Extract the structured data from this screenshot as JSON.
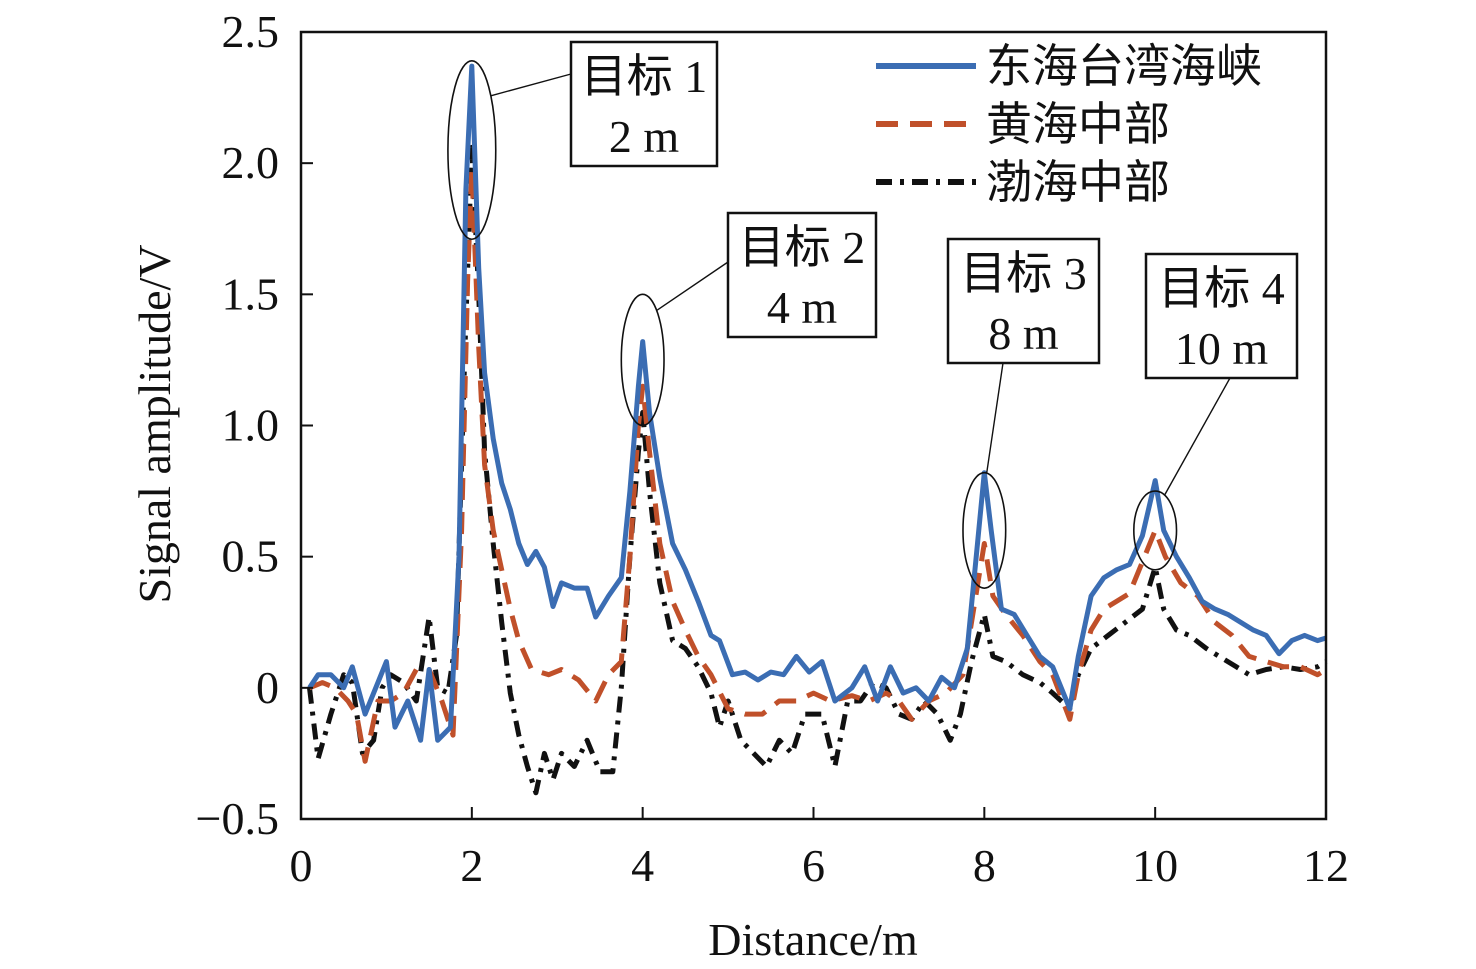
{
  "chart_data": {
    "type": "line",
    "xlabel": "Distance/m",
    "ylabel": "Signal amplitude/V",
    "xlim": [
      0,
      12
    ],
    "ylim": [
      -0.5,
      2.5
    ],
    "x_tick_labels": [
      "0",
      "2",
      "4",
      "6",
      "8",
      "10",
      "12"
    ],
    "y_tick_labels": [
      "−0.5",
      "0",
      "0.5",
      "1.0",
      "1.5",
      "2.0",
      "2.5"
    ],
    "y_tick_values": [
      -0.5,
      0,
      0.5,
      1.0,
      1.5,
      2.0,
      2.5
    ],
    "legend_position": "top-right",
    "grid": false,
    "series": [
      {
        "name": "东海台湾海峡",
        "color": "#3b6db3",
        "dash": "solid",
        "points": [
          [
            0.1,
            0.0
          ],
          [
            0.2,
            0.05
          ],
          [
            0.35,
            0.05
          ],
          [
            0.5,
            0.0
          ],
          [
            0.6,
            0.08
          ],
          [
            0.75,
            -0.1
          ],
          [
            0.9,
            0.02
          ],
          [
            1.0,
            0.1
          ],
          [
            1.1,
            -0.15
          ],
          [
            1.25,
            -0.05
          ],
          [
            1.4,
            -0.2
          ],
          [
            1.5,
            0.07
          ],
          [
            1.6,
            -0.2
          ],
          [
            1.75,
            -0.15
          ],
          [
            1.85,
            0.5
          ],
          [
            1.93,
            1.9
          ],
          [
            2.0,
            2.37
          ],
          [
            2.08,
            1.6
          ],
          [
            2.15,
            1.2
          ],
          [
            2.25,
            0.95
          ],
          [
            2.35,
            0.78
          ],
          [
            2.45,
            0.68
          ],
          [
            2.55,
            0.55
          ],
          [
            2.65,
            0.47
          ],
          [
            2.75,
            0.52
          ],
          [
            2.85,
            0.46
          ],
          [
            2.95,
            0.31
          ],
          [
            3.05,
            0.4
          ],
          [
            3.2,
            0.38
          ],
          [
            3.35,
            0.38
          ],
          [
            3.45,
            0.27
          ],
          [
            3.6,
            0.35
          ],
          [
            3.75,
            0.42
          ],
          [
            3.85,
            0.75
          ],
          [
            3.95,
            1.15
          ],
          [
            4.0,
            1.32
          ],
          [
            4.08,
            1.05
          ],
          [
            4.2,
            0.8
          ],
          [
            4.35,
            0.55
          ],
          [
            4.5,
            0.45
          ],
          [
            4.65,
            0.33
          ],
          [
            4.8,
            0.2
          ],
          [
            4.9,
            0.18
          ],
          [
            5.05,
            0.05
          ],
          [
            5.2,
            0.06
          ],
          [
            5.35,
            0.03
          ],
          [
            5.5,
            0.06
          ],
          [
            5.65,
            0.05
          ],
          [
            5.8,
            0.12
          ],
          [
            5.95,
            0.06
          ],
          [
            6.1,
            0.1
          ],
          [
            6.25,
            -0.05
          ],
          [
            6.45,
            0.0
          ],
          [
            6.6,
            0.08
          ],
          [
            6.75,
            -0.05
          ],
          [
            6.9,
            0.08
          ],
          [
            7.05,
            -0.02
          ],
          [
            7.2,
            0.0
          ],
          [
            7.35,
            -0.05
          ],
          [
            7.5,
            0.04
          ],
          [
            7.65,
            0.0
          ],
          [
            7.8,
            0.15
          ],
          [
            7.92,
            0.55
          ],
          [
            8.0,
            0.82
          ],
          [
            8.08,
            0.6
          ],
          [
            8.2,
            0.3
          ],
          [
            8.35,
            0.28
          ],
          [
            8.5,
            0.2
          ],
          [
            8.65,
            0.12
          ],
          [
            8.8,
            0.08
          ],
          [
            9.0,
            -0.08
          ],
          [
            9.1,
            0.12
          ],
          [
            9.25,
            0.35
          ],
          [
            9.4,
            0.42
          ],
          [
            9.55,
            0.45
          ],
          [
            9.7,
            0.47
          ],
          [
            9.85,
            0.58
          ],
          [
            10.0,
            0.79
          ],
          [
            10.1,
            0.6
          ],
          [
            10.25,
            0.5
          ],
          [
            10.4,
            0.42
          ],
          [
            10.55,
            0.33
          ],
          [
            10.7,
            0.3
          ],
          [
            10.85,
            0.28
          ],
          [
            11.0,
            0.25
          ],
          [
            11.15,
            0.22
          ],
          [
            11.3,
            0.2
          ],
          [
            11.45,
            0.13
          ],
          [
            11.6,
            0.18
          ],
          [
            11.75,
            0.2
          ],
          [
            11.9,
            0.18
          ],
          [
            12.0,
            0.19
          ]
        ]
      },
      {
        "name": "黄海中部",
        "color": "#c0502a",
        "dash": "dashed",
        "points": [
          [
            0.1,
            0.0
          ],
          [
            0.25,
            0.02
          ],
          [
            0.4,
            0.0
          ],
          [
            0.55,
            -0.05
          ],
          [
            0.65,
            -0.1
          ],
          [
            0.75,
            -0.28
          ],
          [
            0.9,
            -0.05
          ],
          [
            1.05,
            -0.05
          ],
          [
            1.2,
            -0.02
          ],
          [
            1.35,
            0.07
          ],
          [
            1.5,
            0.07
          ],
          [
            1.65,
            -0.05
          ],
          [
            1.78,
            -0.18
          ],
          [
            1.88,
            0.6
          ],
          [
            1.95,
            1.55
          ],
          [
            2.0,
            1.98
          ],
          [
            2.08,
            1.3
          ],
          [
            2.15,
            0.85
          ],
          [
            2.25,
            0.6
          ],
          [
            2.35,
            0.45
          ],
          [
            2.45,
            0.3
          ],
          [
            2.55,
            0.18
          ],
          [
            2.7,
            0.07
          ],
          [
            2.9,
            0.05
          ],
          [
            3.05,
            0.07
          ],
          [
            3.25,
            0.03
          ],
          [
            3.45,
            -0.05
          ],
          [
            3.6,
            0.05
          ],
          [
            3.75,
            0.1
          ],
          [
            3.85,
            0.5
          ],
          [
            3.95,
            1.0
          ],
          [
            4.0,
            1.15
          ],
          [
            4.08,
            0.9
          ],
          [
            4.2,
            0.55
          ],
          [
            4.35,
            0.33
          ],
          [
            4.5,
            0.22
          ],
          [
            4.65,
            0.12
          ],
          [
            4.8,
            0.05
          ],
          [
            5.0,
            -0.08
          ],
          [
            5.2,
            -0.1
          ],
          [
            5.4,
            -0.1
          ],
          [
            5.6,
            -0.05
          ],
          [
            5.8,
            -0.05
          ],
          [
            6.0,
            -0.02
          ],
          [
            6.2,
            -0.05
          ],
          [
            6.45,
            -0.03
          ],
          [
            6.65,
            -0.05
          ],
          [
            6.85,
            -0.02
          ],
          [
            7.0,
            -0.05
          ],
          [
            7.15,
            -0.12
          ],
          [
            7.35,
            -0.05
          ],
          [
            7.55,
            -0.02
          ],
          [
            7.75,
            0.05
          ],
          [
            7.9,
            0.35
          ],
          [
            8.0,
            0.55
          ],
          [
            8.1,
            0.35
          ],
          [
            8.25,
            0.28
          ],
          [
            8.45,
            0.2
          ],
          [
            8.65,
            0.1
          ],
          [
            8.8,
            0.05
          ],
          [
            9.0,
            -0.12
          ],
          [
            9.1,
            0.05
          ],
          [
            9.25,
            0.22
          ],
          [
            9.4,
            0.3
          ],
          [
            9.55,
            0.33
          ],
          [
            9.7,
            0.36
          ],
          [
            9.85,
            0.48
          ],
          [
            10.0,
            0.6
          ],
          [
            10.12,
            0.5
          ],
          [
            10.3,
            0.4
          ],
          [
            10.5,
            0.35
          ],
          [
            10.7,
            0.25
          ],
          [
            10.9,
            0.2
          ],
          [
            11.1,
            0.12
          ],
          [
            11.3,
            0.1
          ],
          [
            11.5,
            0.08
          ],
          [
            11.7,
            0.08
          ],
          [
            11.9,
            0.05
          ],
          [
            12.0,
            0.07
          ]
        ]
      },
      {
        "name": "渤海中部",
        "color": "#111111",
        "dash": "dashdot",
        "points": [
          [
            0.1,
            0.0
          ],
          [
            0.2,
            -0.27
          ],
          [
            0.35,
            -0.1
          ],
          [
            0.5,
            0.05
          ],
          [
            0.6,
            0.02
          ],
          [
            0.72,
            -0.25
          ],
          [
            0.85,
            -0.2
          ],
          [
            0.95,
            0.0
          ],
          [
            1.05,
            0.05
          ],
          [
            1.2,
            0.02
          ],
          [
            1.35,
            -0.05
          ],
          [
            1.5,
            0.27
          ],
          [
            1.6,
            0.0
          ],
          [
            1.72,
            -0.02
          ],
          [
            1.82,
            0.2
          ],
          [
            1.92,
            1.3
          ],
          [
            2.0,
            2.06
          ],
          [
            2.08,
            1.5
          ],
          [
            2.15,
            0.9
          ],
          [
            2.25,
            0.55
          ],
          [
            2.35,
            0.25
          ],
          [
            2.45,
            -0.02
          ],
          [
            2.55,
            -0.18
          ],
          [
            2.65,
            -0.3
          ],
          [
            2.75,
            -0.4
          ],
          [
            2.85,
            -0.25
          ],
          [
            2.95,
            -0.35
          ],
          [
            3.05,
            -0.25
          ],
          [
            3.2,
            -0.3
          ],
          [
            3.35,
            -0.2
          ],
          [
            3.5,
            -0.32
          ],
          [
            3.65,
            -0.32
          ],
          [
            3.75,
            0.0
          ],
          [
            3.85,
            0.5
          ],
          [
            3.95,
            0.9
          ],
          [
            4.0,
            1.05
          ],
          [
            4.08,
            0.75
          ],
          [
            4.2,
            0.4
          ],
          [
            4.35,
            0.18
          ],
          [
            4.5,
            0.15
          ],
          [
            4.65,
            0.08
          ],
          [
            4.8,
            -0.02
          ],
          [
            4.9,
            -0.15
          ],
          [
            5.0,
            -0.05
          ],
          [
            5.15,
            -0.2
          ],
          [
            5.3,
            -0.25
          ],
          [
            5.45,
            -0.3
          ],
          [
            5.6,
            -0.2
          ],
          [
            5.75,
            -0.25
          ],
          [
            5.9,
            -0.1
          ],
          [
            6.1,
            -0.1
          ],
          [
            6.25,
            -0.3
          ],
          [
            6.4,
            -0.05
          ],
          [
            6.55,
            -0.05
          ],
          [
            6.7,
            0.02
          ],
          [
            6.85,
            0.0
          ],
          [
            7.0,
            -0.1
          ],
          [
            7.15,
            -0.12
          ],
          [
            7.3,
            -0.05
          ],
          [
            7.45,
            -0.1
          ],
          [
            7.6,
            -0.2
          ],
          [
            7.72,
            -0.1
          ],
          [
            7.85,
            0.1
          ],
          [
            8.0,
            0.28
          ],
          [
            8.1,
            0.12
          ],
          [
            8.25,
            0.1
          ],
          [
            8.45,
            0.05
          ],
          [
            8.65,
            0.02
          ],
          [
            8.8,
            -0.02
          ],
          [
            9.0,
            -0.08
          ],
          [
            9.1,
            0.05
          ],
          [
            9.25,
            0.15
          ],
          [
            9.45,
            0.2
          ],
          [
            9.65,
            0.25
          ],
          [
            9.85,
            0.3
          ],
          [
            10.0,
            0.46
          ],
          [
            10.1,
            0.3
          ],
          [
            10.25,
            0.22
          ],
          [
            10.4,
            0.2
          ],
          [
            10.6,
            0.15
          ],
          [
            10.75,
            0.12
          ],
          [
            10.95,
            0.08
          ],
          [
            11.1,
            0.05
          ],
          [
            11.3,
            0.07
          ],
          [
            11.5,
            0.08
          ],
          [
            11.7,
            0.07
          ],
          [
            11.9,
            0.08
          ],
          [
            12.0,
            0.1
          ]
        ]
      }
    ],
    "annotations": [
      {
        "line1": "目标 1",
        "line2": "2 m",
        "target_x": 2.0,
        "target_y": 2.05,
        "rx": 0.28,
        "ry": 0.34
      },
      {
        "line1": "目标 2",
        "line2": "4 m",
        "target_x": 4.0,
        "target_y": 1.25,
        "rx": 0.25,
        "ry": 0.25
      },
      {
        "line1": "目标 3",
        "line2": "8 m",
        "target_x": 8.0,
        "target_y": 0.6,
        "rx": 0.25,
        "ry": 0.22
      },
      {
        "line1": "目标 4",
        "line2": "10 m",
        "target_x": 10.0,
        "target_y": 0.6,
        "rx": 0.25,
        "ry": 0.15
      }
    ]
  }
}
